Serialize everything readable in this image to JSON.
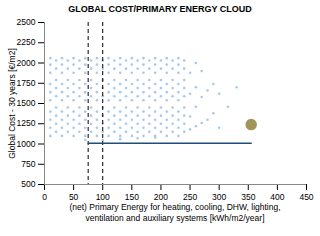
{
  "chart_data": {
    "type": "scatter",
    "title": "GLOBAL COST/PRIMARY ENERGY CLOUD",
    "x_label": "(net) Primary Energy for heating, cooling, DHW, lighting,\nventilation and auxiliary systems [kWh/m2/year]",
    "y_label": "Global Cost - 30 years [€/m2]",
    "xlim": [
      0,
      450
    ],
    "xticks": [
      0,
      50,
      100,
      150,
      200,
      250,
      300,
      350,
      400,
      450
    ],
    "ylim": [
      500,
      2500
    ],
    "yticks": [
      500,
      750,
      1000,
      1250,
      1500,
      1750,
      2000,
      2250,
      2500
    ],
    "grid": false,
    "series": [
      {
        "type": "scatter",
        "color": "#a9c8ea",
        "marker": "circle",
        "x": [
          10,
          10,
          10,
          10,
          10,
          10,
          10,
          10,
          10,
          10,
          20,
          20,
          20,
          20,
          20,
          20,
          20,
          20,
          20,
          30,
          30,
          30,
          30,
          30,
          30,
          30,
          30,
          30,
          30,
          40,
          40,
          40,
          40,
          40,
          40,
          40,
          40,
          40,
          50,
          50,
          50,
          50,
          50,
          50,
          50,
          50,
          50,
          50,
          60,
          60,
          60,
          60,
          60,
          60,
          60,
          60,
          60,
          70,
          70,
          70,
          70,
          70,
          70,
          70,
          70,
          70,
          70,
          80,
          80,
          80,
          80,
          80,
          80,
          80,
          80,
          80,
          90,
          90,
          90,
          90,
          90,
          90,
          90,
          90,
          90,
          90,
          100,
          100,
          100,
          100,
          100,
          100,
          100,
          100,
          100,
          110,
          110,
          110,
          110,
          110,
          110,
          110,
          110,
          110,
          110,
          120,
          120,
          120,
          120,
          120,
          120,
          120,
          120,
          120,
          130,
          130,
          130,
          130,
          130,
          130,
          130,
          130,
          130,
          130,
          140,
          140,
          140,
          140,
          140,
          140,
          140,
          140,
          140,
          150,
          150,
          150,
          150,
          150,
          150,
          150,
          150,
          150,
          150,
          160,
          160,
          160,
          160,
          160,
          160,
          160,
          160,
          160,
          170,
          170,
          170,
          170,
          170,
          170,
          170,
          170,
          170,
          170,
          180,
          180,
          180,
          180,
          180,
          180,
          180,
          180,
          180,
          190,
          190,
          190,
          190,
          190,
          190,
          190,
          190,
          190,
          190,
          200,
          200,
          200,
          200,
          200,
          200,
          200,
          200,
          200,
          210,
          210,
          210,
          210,
          210,
          210,
          210,
          210,
          210,
          210,
          220,
          220,
          220,
          220,
          220,
          220,
          220,
          220,
          220,
          230,
          230,
          230,
          230,
          230,
          230,
          230,
          230,
          230,
          230,
          240,
          240,
          240,
          240,
          240,
          240,
          240,
          240,
          240,
          250,
          250,
          250,
          250,
          260,
          260,
          260,
          260,
          270,
          270,
          270,
          280,
          280,
          290,
          290,
          300,
          300,
          315,
          330,
          70,
          100,
          130,
          160,
          190
        ],
        "values": [
          1100,
          1200,
          1300,
          1400,
          1540,
          1640,
          1740,
          1880,
          1980,
          2060,
          1150,
          1250,
          1350,
          1450,
          1590,
          1690,
          1790,
          1930,
          2030,
          1100,
          1200,
          1300,
          1400,
          1540,
          1640,
          1740,
          1880,
          1980,
          2060,
          1150,
          1250,
          1350,
          1450,
          1590,
          1690,
          1790,
          1930,
          2030,
          1100,
          1200,
          1300,
          1400,
          1540,
          1640,
          1740,
          1880,
          1980,
          2060,
          1150,
          1250,
          1350,
          1450,
          1590,
          1690,
          1790,
          1930,
          2030,
          1100,
          1200,
          1300,
          1400,
          1540,
          1640,
          1740,
          1880,
          1980,
          2060,
          1150,
          1250,
          1350,
          1450,
          1590,
          1690,
          1790,
          1930,
          2030,
          1100,
          1200,
          1300,
          1400,
          1540,
          1640,
          1740,
          1880,
          1980,
          2060,
          1150,
          1250,
          1350,
          1450,
          1590,
          1690,
          1790,
          1930,
          2030,
          1100,
          1200,
          1300,
          1400,
          1540,
          1640,
          1740,
          1880,
          1980,
          2060,
          1150,
          1250,
          1350,
          1450,
          1590,
          1690,
          1790,
          1930,
          2030,
          1100,
          1200,
          1300,
          1400,
          1540,
          1640,
          1740,
          1880,
          1980,
          2060,
          1150,
          1250,
          1350,
          1450,
          1590,
          1690,
          1790,
          1930,
          2030,
          1100,
          1200,
          1300,
          1400,
          1540,
          1640,
          1740,
          1880,
          1980,
          2060,
          1150,
          1250,
          1350,
          1450,
          1590,
          1690,
          1790,
          1930,
          2030,
          1100,
          1200,
          1300,
          1400,
          1540,
          1640,
          1740,
          1880,
          1980,
          2060,
          1150,
          1250,
          1350,
          1450,
          1590,
          1690,
          1790,
          1930,
          2030,
          1100,
          1200,
          1300,
          1400,
          1540,
          1640,
          1740,
          1880,
          1980,
          2060,
          1150,
          1250,
          1350,
          1450,
          1590,
          1690,
          1790,
          1930,
          2030,
          1100,
          1200,
          1300,
          1400,
          1540,
          1640,
          1740,
          1880,
          1980,
          2060,
          1150,
          1250,
          1350,
          1450,
          1590,
          1690,
          1790,
          1930,
          2030,
          1100,
          1200,
          1300,
          1400,
          1540,
          1640,
          1740,
          1880,
          1980,
          2060,
          1150,
          1250,
          1350,
          1450,
          1590,
          1690,
          1790,
          1930,
          2030,
          1180,
          1340,
          1620,
          1880,
          1220,
          1460,
          1700,
          2000,
          1260,
          1580,
          1900,
          1300,
          1660,
          1380,
          1740,
          1200,
          1620,
          1460,
          1700,
          1050,
          1050,
          1060,
          1070,
          1080
        ]
      },
      {
        "type": "scatter",
        "color": "#a3955a",
        "marker": "circle",
        "x": [
          355
        ],
        "values": [
          1240
        ]
      }
    ],
    "reference_lines": [
      {
        "x": 75,
        "line_style": "dashed",
        "color": "#000000"
      },
      {
        "x": 100,
        "line_style": "dashed",
        "color": "#000000"
      },
      {
        "y": 1010,
        "x": [
          75,
          355
        ],
        "line_style": "solid",
        "color": "#1f4e79"
      }
    ]
  }
}
